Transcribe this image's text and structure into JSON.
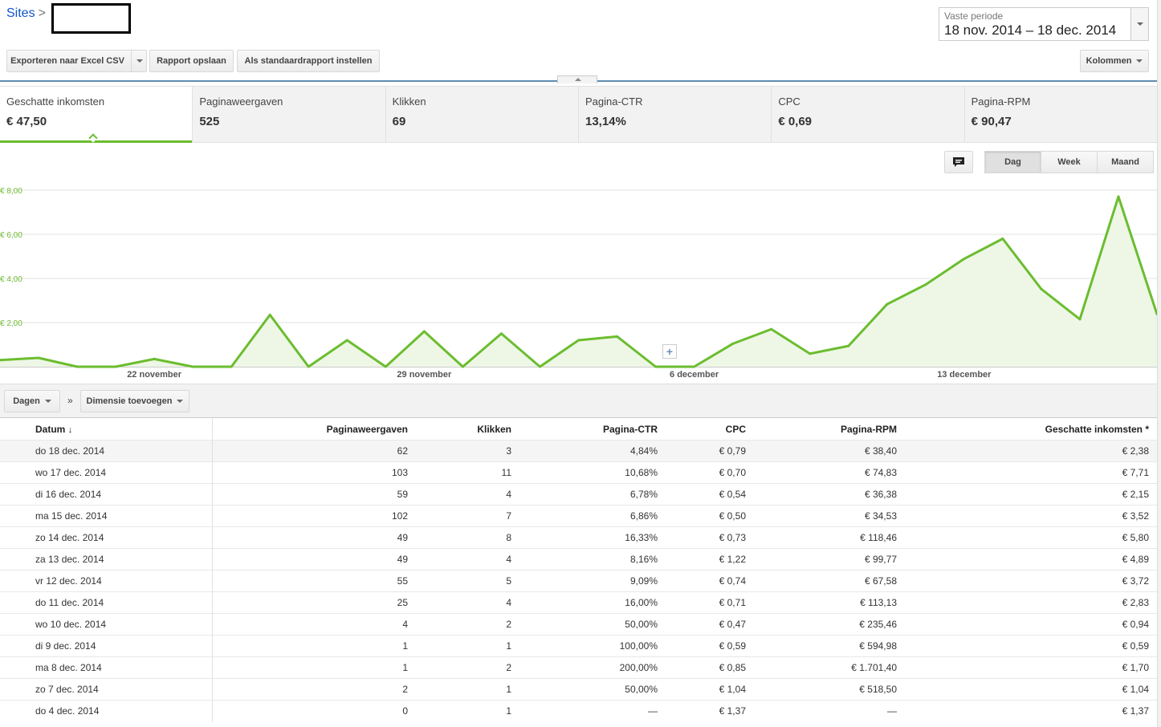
{
  "breadcrumb": {
    "root": "Sites",
    "separator": ">"
  },
  "period": {
    "label": "Vaste periode",
    "value": "18 nov. 2014 – 18 dec. 2014"
  },
  "toolbar": {
    "export_label": "Exporteren naar Excel CSV",
    "save_label": "Rapport opslaan",
    "default_label": "Als standaardrapport instellen",
    "columns_label": "Kolommen"
  },
  "scorecards": [
    {
      "name": "Geschatte inkomsten",
      "value": "€ 47,50"
    },
    {
      "name": "Paginaweergaven",
      "value": "525"
    },
    {
      "name": "Klikken",
      "value": "69"
    },
    {
      "name": "Pagina-CTR",
      "value": "13,14%"
    },
    {
      "name": "CPC",
      "value": "€ 0,69"
    },
    {
      "name": "Pagina-RPM",
      "value": "€ 90,47"
    }
  ],
  "granularity": {
    "day": "Dag",
    "week": "Week",
    "month": "Maand"
  },
  "icons": {
    "note": "speech-bubble-icon",
    "add": "plus-icon",
    "sort": "arrow-down-icon"
  },
  "colors": {
    "series": "#6bbd2f",
    "fill": "#eef7e6",
    "accent_line": "#5f8db0"
  },
  "chart_data": {
    "type": "area",
    "ylim": [
      0,
      8
    ],
    "yticks": [
      "€ 2,00",
      "€ 4,00",
      "€ 6,00",
      "€ 8,00"
    ],
    "xtick_labels": [
      "22 november",
      "29 november",
      "6 december",
      "13 december"
    ],
    "x": [
      "18 nov.",
      "19 nov.",
      "20 nov.",
      "21 nov.",
      "22 nov.",
      "23 nov.",
      "24 nov.",
      "25 nov.",
      "26 nov.",
      "27 nov.",
      "28 nov.",
      "29 nov.",
      "30 nov.",
      "1 dec.",
      "2 dec.",
      "3 dec.",
      "4 dec.",
      "5 dec.",
      "6 dec.",
      "7 dec.",
      "8 dec.",
      "9 dec.",
      "10 dec.",
      "11 dec.",
      "12 dec.",
      "13 dec.",
      "14 dec.",
      "15 dec.",
      "16 dec.",
      "17 dec.",
      "18 dec."
    ],
    "series": [
      {
        "values": [
          0.3,
          0.4,
          0.0,
          0.0,
          0.35,
          0.0,
          0.0,
          2.35,
          0.0,
          1.2,
          0.0,
          1.6,
          0.0,
          1.5,
          0.0,
          1.2,
          1.37,
          0.0,
          0.0,
          1.04,
          1.7,
          0.59,
          0.94,
          2.83,
          3.72,
          4.89,
          5.8,
          3.52,
          2.15,
          7.71,
          2.38
        ]
      }
    ]
  },
  "dimensions": {
    "days_label": "Dagen",
    "chevron": "»",
    "add_label": "Dimensie toevoegen"
  },
  "table": {
    "headers": {
      "date": "Datum",
      "views": "Paginaweergaven",
      "clicks": "Klikken",
      "ctr": "Pagina-CTR",
      "cpc": "CPC",
      "rpm": "Pagina-RPM",
      "earnings": "Geschatte inkomsten *"
    },
    "rows": [
      [
        "do 18 dec. 2014",
        "62",
        "3",
        "4,84%",
        "€ 0,79",
        "€ 38,40",
        "€ 2,38"
      ],
      [
        "wo 17 dec. 2014",
        "103",
        "11",
        "10,68%",
        "€ 0,70",
        "€ 74,83",
        "€ 7,71"
      ],
      [
        "di 16 dec. 2014",
        "59",
        "4",
        "6,78%",
        "€ 0,54",
        "€ 36,38",
        "€ 2,15"
      ],
      [
        "ma 15 dec. 2014",
        "102",
        "7",
        "6,86%",
        "€ 0,50",
        "€ 34,53",
        "€ 3,52"
      ],
      [
        "zo 14 dec. 2014",
        "49",
        "8",
        "16,33%",
        "€ 0,73",
        "€ 118,46",
        "€ 5,80"
      ],
      [
        "za 13 dec. 2014",
        "49",
        "4",
        "8,16%",
        "€ 1,22",
        "€ 99,77",
        "€ 4,89"
      ],
      [
        "vr 12 dec. 2014",
        "55",
        "5",
        "9,09%",
        "€ 0,74",
        "€ 67,58",
        "€ 3,72"
      ],
      [
        "do 11 dec. 2014",
        "25",
        "4",
        "16,00%",
        "€ 0,71",
        "€ 113,13",
        "€ 2,83"
      ],
      [
        "wo 10 dec. 2014",
        "4",
        "2",
        "50,00%",
        "€ 0,47",
        "€ 235,46",
        "€ 0,94"
      ],
      [
        "di 9 dec. 2014",
        "1",
        "1",
        "100,00%",
        "€ 0,59",
        "€ 594,98",
        "€ 0,59"
      ],
      [
        "ma 8 dec. 2014",
        "1",
        "2",
        "200,00%",
        "€ 0,85",
        "€ 1.701,40",
        "€ 1,70"
      ],
      [
        "zo 7 dec. 2014",
        "2",
        "1",
        "50,00%",
        "€ 1,04",
        "€ 518,50",
        "€ 1,04"
      ],
      [
        "do 4 dec. 2014",
        "0",
        "1",
        "—",
        "€ 1,37",
        "—",
        "€ 1,37"
      ]
    ]
  }
}
